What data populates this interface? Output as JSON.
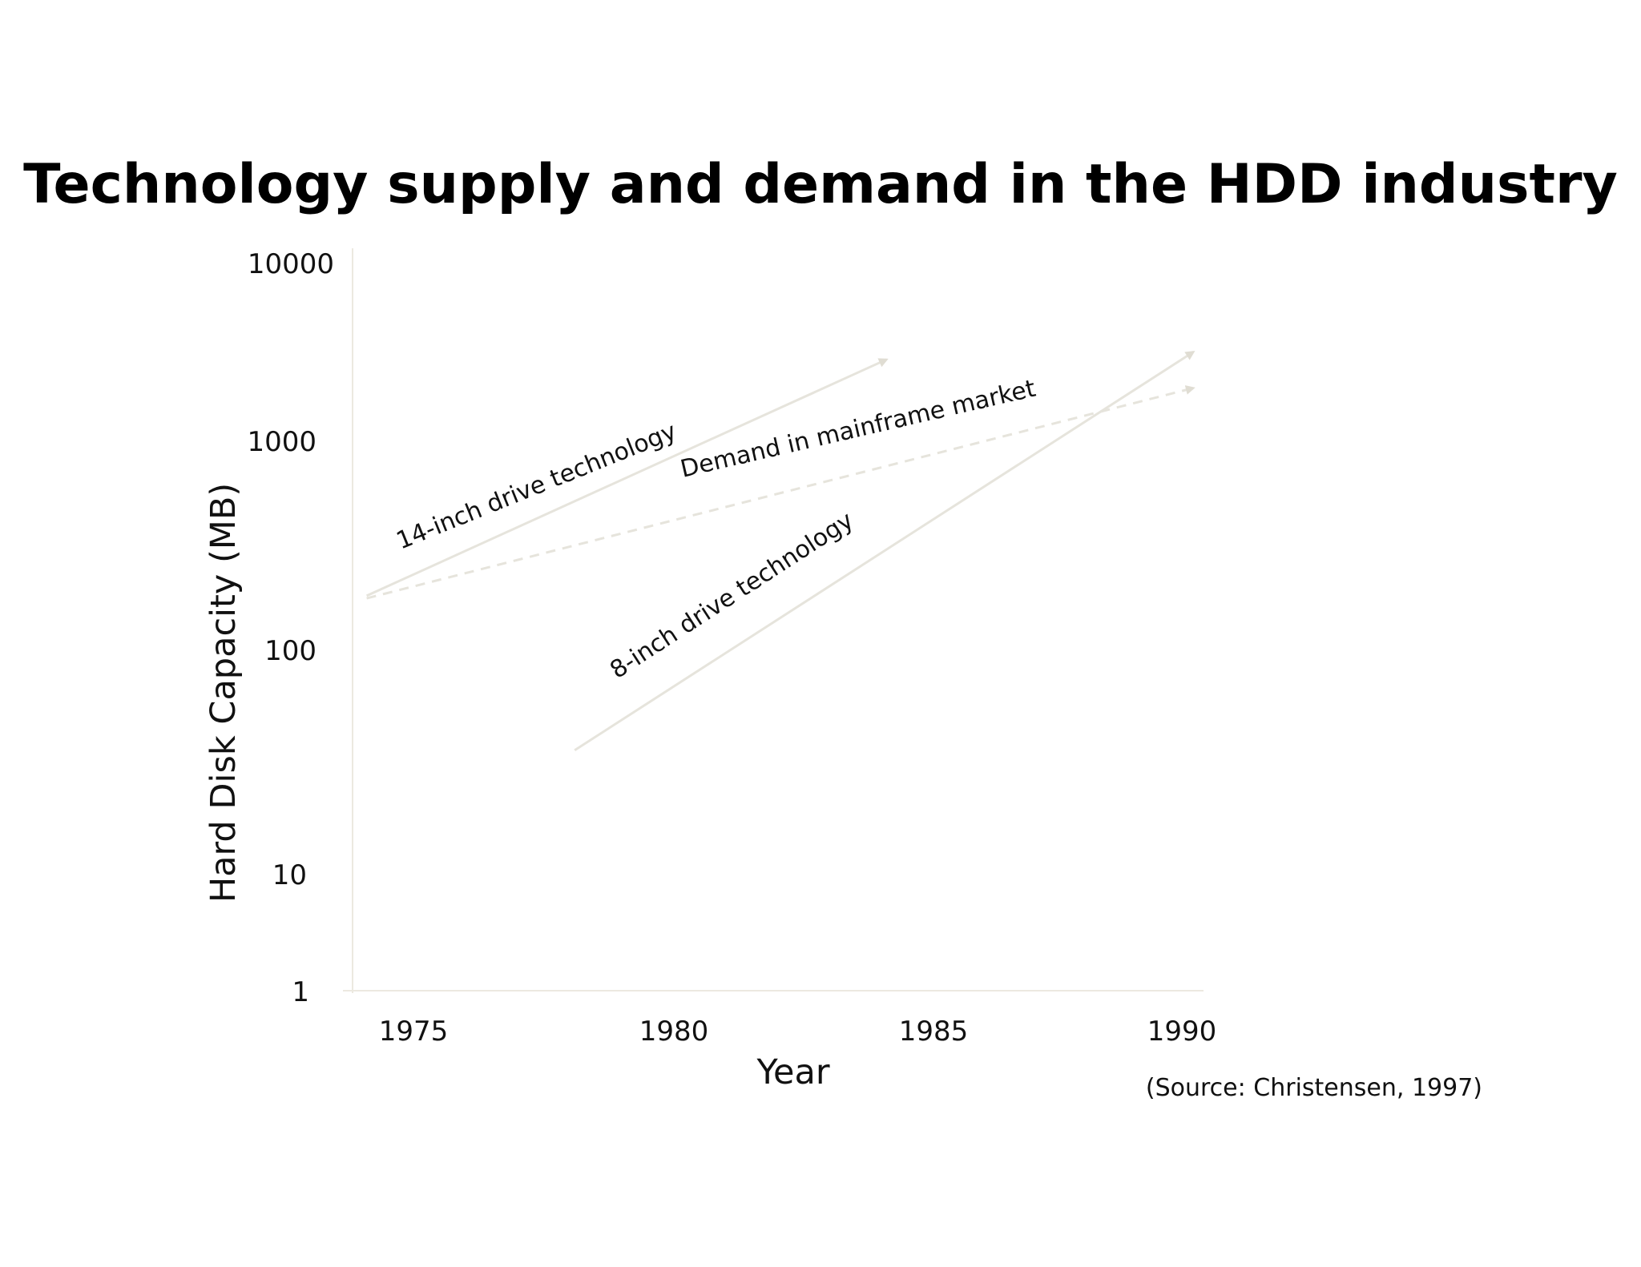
{
  "chart_data": {
    "type": "line",
    "title": "Technology supply and demand in the HDD industry",
    "xlabel": "Year",
    "ylabel": "Hard Disk Capacity (MB)",
    "x_ticks": [
      "1975",
      "1980",
      "1985",
      "1990"
    ],
    "y_ticks": [
      "10000",
      "1000",
      "100",
      "10",
      "1"
    ],
    "y_scale": "log",
    "xlim": [
      1973.8,
      1990.4
    ],
    "ylim": [
      1,
      10000
    ],
    "grid": false,
    "legend": "none (series labeled inline along lines)",
    "source_note": "(Source: Christensen, 1997)",
    "series": [
      {
        "name": "14-inch drive technology",
        "style": "solid-arrow",
        "x": [
          1974.1,
          1984.1
        ],
        "y": [
          180,
          2900
        ]
      },
      {
        "name": "Demand in mainframe market",
        "style": "dashed-arrow",
        "x": [
          1974.1,
          1990.0
        ],
        "y": [
          175,
          2000
        ]
      },
      {
        "name": "8-inch drive technology",
        "style": "solid-arrow",
        "x": [
          1978.1,
          1990.0
        ],
        "y": [
          35,
          3200
        ]
      }
    ],
    "colors": {
      "line": "#e6e4dc",
      "axis": "#ece9e0",
      "text": "#111111"
    }
  }
}
